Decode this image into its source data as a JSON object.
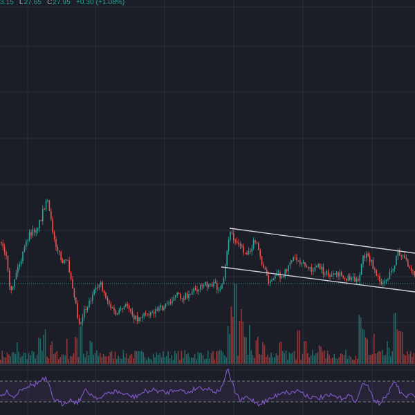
{
  "legend": {
    "high_value": "3.15",
    "low_label": "L",
    "low_value": "27.65",
    "close_label": "C",
    "close_value": "27.95",
    "change": "+0.30 (+1.08%)"
  },
  "colors": {
    "background": "#1c1e27",
    "grid": "#2a2e39",
    "up": "#26a69a",
    "down": "#ef5350",
    "rsi_line": "#7e57c2",
    "trendline": "#d1d4dc",
    "price_line": "#26a69a"
  },
  "chart_data": {
    "type": "candlestick",
    "grid": true,
    "indicators": [
      "volume",
      "RSI"
    ],
    "price_path": [
      [
        0,
        350
      ],
      [
        8,
        372
      ],
      [
        14,
        428
      ],
      [
        22,
        395
      ],
      [
        30,
        375
      ],
      [
        40,
        342
      ],
      [
        52,
        330
      ],
      [
        58,
        318
      ],
      [
        62,
        300
      ],
      [
        68,
        292
      ],
      [
        72,
        316
      ],
      [
        78,
        345
      ],
      [
        84,
        365
      ],
      [
        90,
        382
      ],
      [
        96,
        376
      ],
      [
        102,
        402
      ],
      [
        108,
        432
      ],
      [
        112,
        462
      ],
      [
        116,
        468
      ],
      [
        120,
        448
      ],
      [
        126,
        442
      ],
      [
        132,
        428
      ],
      [
        138,
        420
      ],
      [
        144,
        405
      ],
      [
        148,
        420
      ],
      [
        154,
        432
      ],
      [
        160,
        446
      ],
      [
        168,
        455
      ],
      [
        176,
        448
      ],
      [
        184,
        440
      ],
      [
        190,
        452
      ],
      [
        196,
        462
      ],
      [
        204,
        456
      ],
      [
        212,
        452
      ],
      [
        222,
        450
      ],
      [
        232,
        446
      ],
      [
        240,
        440
      ],
      [
        248,
        432
      ],
      [
        256,
        427
      ],
      [
        264,
        430
      ],
      [
        272,
        425
      ],
      [
        280,
        418
      ],
      [
        288,
        416
      ],
      [
        296,
        412
      ],
      [
        304,
        410
      ],
      [
        312,
        414
      ],
      [
        318,
        420
      ],
      [
        322,
        412
      ],
      [
        326,
        378
      ],
      [
        330,
        342
      ],
      [
        334,
        336
      ],
      [
        338,
        350
      ],
      [
        344,
        348
      ],
      [
        350,
        362
      ],
      [
        356,
        366
      ],
      [
        362,
        358
      ],
      [
        368,
        348
      ],
      [
        372,
        360
      ],
      [
        378,
        380
      ],
      [
        384,
        398
      ],
      [
        390,
        410
      ],
      [
        396,
        402
      ],
      [
        402,
        398
      ],
      [
        408,
        405
      ],
      [
        412,
        392
      ],
      [
        418,
        378
      ],
      [
        424,
        372
      ],
      [
        430,
        376
      ],
      [
        436,
        378
      ],
      [
        442,
        386
      ],
      [
        450,
        392
      ],
      [
        458,
        384
      ],
      [
        466,
        392
      ],
      [
        474,
        398
      ],
      [
        482,
        400
      ],
      [
        490,
        398
      ],
      [
        500,
        402
      ],
      [
        508,
        400
      ],
      [
        514,
        404
      ],
      [
        518,
        412
      ],
      [
        520,
        392
      ],
      [
        524,
        372
      ],
      [
        528,
        370
      ],
      [
        534,
        376
      ],
      [
        540,
        388
      ],
      [
        546,
        404
      ],
      [
        552,
        408
      ],
      [
        558,
        404
      ],
      [
        564,
        395
      ],
      [
        570,
        380
      ],
      [
        574,
        364
      ],
      [
        578,
        370
      ],
      [
        584,
        375
      ],
      [
        590,
        382
      ],
      [
        596,
        390
      ],
      [
        600,
        398
      ]
    ],
    "volume_spikes": [
      [
        24,
        32
      ],
      [
        56,
        38
      ],
      [
        64,
        48
      ],
      [
        74,
        30
      ],
      [
        96,
        34
      ],
      [
        110,
        42
      ],
      [
        116,
        60
      ],
      [
        130,
        34
      ],
      [
        330,
        52
      ],
      [
        334,
        78
      ],
      [
        340,
        115
      ],
      [
        346,
        72
      ],
      [
        350,
        58
      ],
      [
        354,
        48
      ],
      [
        360,
        55
      ],
      [
        370,
        42
      ],
      [
        380,
        36
      ],
      [
        404,
        30
      ],
      [
        430,
        62
      ],
      [
        440,
        40
      ],
      [
        462,
        30
      ],
      [
        520,
        66
      ],
      [
        524,
        48
      ],
      [
        530,
        40
      ],
      [
        540,
        44
      ],
      [
        560,
        30
      ],
      [
        570,
        72
      ],
      [
        574,
        60
      ],
      [
        580,
        46
      ]
    ],
    "rsi_path": [
      [
        0,
        574
      ],
      [
        12,
        566
      ],
      [
        20,
        575
      ],
      [
        30,
        562
      ],
      [
        40,
        558
      ],
      [
        50,
        556
      ],
      [
        60,
        550
      ],
      [
        66,
        548
      ],
      [
        70,
        556
      ],
      [
        76,
        574
      ],
      [
        82,
        580
      ],
      [
        90,
        584
      ],
      [
        100,
        578
      ],
      [
        112,
        582
      ],
      [
        124,
        564
      ],
      [
        134,
        572
      ],
      [
        146,
        576
      ],
      [
        156,
        568
      ],
      [
        168,
        566
      ],
      [
        180,
        570
      ],
      [
        194,
        574
      ],
      [
        210,
        566
      ],
      [
        224,
        564
      ],
      [
        240,
        568
      ],
      [
        256,
        562
      ],
      [
        270,
        568
      ],
      [
        286,
        560
      ],
      [
        300,
        562
      ],
      [
        312,
        566
      ],
      [
        320,
        562
      ],
      [
        326,
        542
      ],
      [
        330,
        536
      ],
      [
        334,
        550
      ],
      [
        340,
        566
      ],
      [
        348,
        580
      ],
      [
        356,
        574
      ],
      [
        364,
        578
      ],
      [
        374,
        584
      ],
      [
        384,
        580
      ],
      [
        396,
        574
      ],
      [
        408,
        566
      ],
      [
        420,
        568
      ],
      [
        432,
        564
      ],
      [
        444,
        572
      ],
      [
        456,
        576
      ],
      [
        468,
        574
      ],
      [
        480,
        572
      ],
      [
        492,
        576
      ],
      [
        504,
        572
      ],
      [
        516,
        580
      ],
      [
        520,
        566
      ],
      [
        526,
        552
      ],
      [
        532,
        560
      ],
      [
        540,
        576
      ],
      [
        548,
        584
      ],
      [
        556,
        576
      ],
      [
        566,
        560
      ],
      [
        572,
        552
      ],
      [
        578,
        566
      ],
      [
        586,
        574
      ],
      [
        594,
        570
      ],
      [
        600,
        576
      ]
    ]
  }
}
